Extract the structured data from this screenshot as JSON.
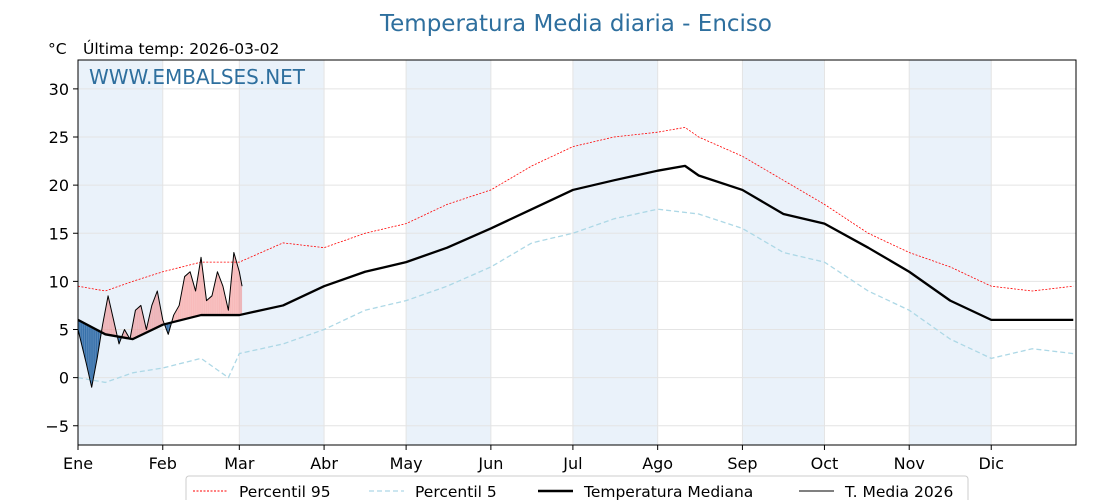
{
  "chart_data": {
    "type": "line",
    "title": "Temperatura Media diaria - Enciso",
    "unit_label": "°C",
    "last_update": "Última temp: 2026-03-02",
    "watermark": "WWW.EMBALSES.NET",
    "ylim": [
      -7,
      33
    ],
    "yticks": [
      "−5",
      "0",
      "5",
      "10",
      "15",
      "20",
      "25",
      "30"
    ],
    "ytick_values": [
      -5,
      0,
      5,
      10,
      15,
      20,
      25,
      30
    ],
    "months": [
      "Ene",
      "Feb",
      "Mar",
      "Abr",
      "May",
      "Jun",
      "Jul",
      "Ago",
      "Sep",
      "Oct",
      "Nov",
      "Dic"
    ],
    "month_start_days": [
      0,
      31,
      59,
      90,
      120,
      151,
      181,
      212,
      243,
      273,
      304,
      334
    ],
    "days_in_year": 365,
    "grid": true,
    "legend_position": "bottom",
    "colors": {
      "p95": "#ff0000",
      "p5": "#add8e6",
      "median": "#000000",
      "current": "#000000",
      "warm_fill": "#f08080",
      "cold_fill": "#1f5fa0",
      "band": "#eaf2fa"
    },
    "series": [
      {
        "name": "Percentil 95",
        "key": "p95",
        "x": [
          0,
          10,
          20,
          31,
          45,
          59,
          75,
          90,
          105,
          120,
          135,
          151,
          166,
          181,
          196,
          212,
          222,
          227,
          243,
          258,
          273,
          289,
          304,
          319,
          334,
          349,
          364
        ],
        "values": [
          9.5,
          9,
          10,
          11,
          12,
          12,
          14,
          13.5,
          15,
          16,
          18,
          19.5,
          22,
          24,
          25,
          25.5,
          26,
          25,
          23,
          20.5,
          18,
          15,
          13,
          11.5,
          9.5,
          9,
          9.5
        ]
      },
      {
        "name": "Percentil 5",
        "key": "p5",
        "x": [
          0,
          10,
          20,
          31,
          45,
          55,
          59,
          75,
          90,
          105,
          120,
          135,
          151,
          166,
          181,
          196,
          212,
          227,
          243,
          258,
          273,
          289,
          304,
          319,
          334,
          349,
          364
        ],
        "values": [
          0,
          -0.5,
          0.5,
          1,
          2,
          0,
          2.5,
          3.5,
          5,
          7,
          8,
          9.5,
          11.5,
          14,
          15,
          16.5,
          17.5,
          17,
          15.5,
          13,
          12,
          9,
          7,
          4,
          2,
          3,
          2.5
        ]
      },
      {
        "name": "Temperatura Mediana",
        "key": "median",
        "x": [
          0,
          10,
          20,
          31,
          45,
          59,
          75,
          90,
          105,
          120,
          135,
          151,
          166,
          181,
          196,
          212,
          222,
          227,
          243,
          258,
          273,
          289,
          304,
          319,
          334,
          349,
          364
        ],
        "values": [
          6,
          4.5,
          4,
          5.5,
          6.5,
          6.5,
          7.5,
          9.5,
          11,
          12,
          13.5,
          15.5,
          17.5,
          19.5,
          20.5,
          21.5,
          22,
          21,
          19.5,
          17,
          16,
          13.5,
          11,
          8,
          6,
          6,
          6
        ]
      },
      {
        "name": "T. Media 2026",
        "key": "current",
        "x": [
          0,
          3,
          5,
          7,
          9,
          11,
          13,
          15,
          17,
          19,
          21,
          23,
          25,
          27,
          29,
          31,
          33,
          35,
          37,
          39,
          41,
          43,
          45,
          47,
          49,
          51,
          53,
          55,
          57,
          59,
          60
        ],
        "values": [
          5,
          1.5,
          -1,
          2,
          5.5,
          8.5,
          6,
          3.5,
          5,
          4,
          7,
          7.5,
          5,
          7.5,
          9,
          6,
          4.5,
          6.5,
          7.5,
          10.5,
          11,
          9,
          12.5,
          8,
          8.5,
          11,
          9.5,
          7,
          13,
          11,
          9.5
        ]
      }
    ]
  }
}
